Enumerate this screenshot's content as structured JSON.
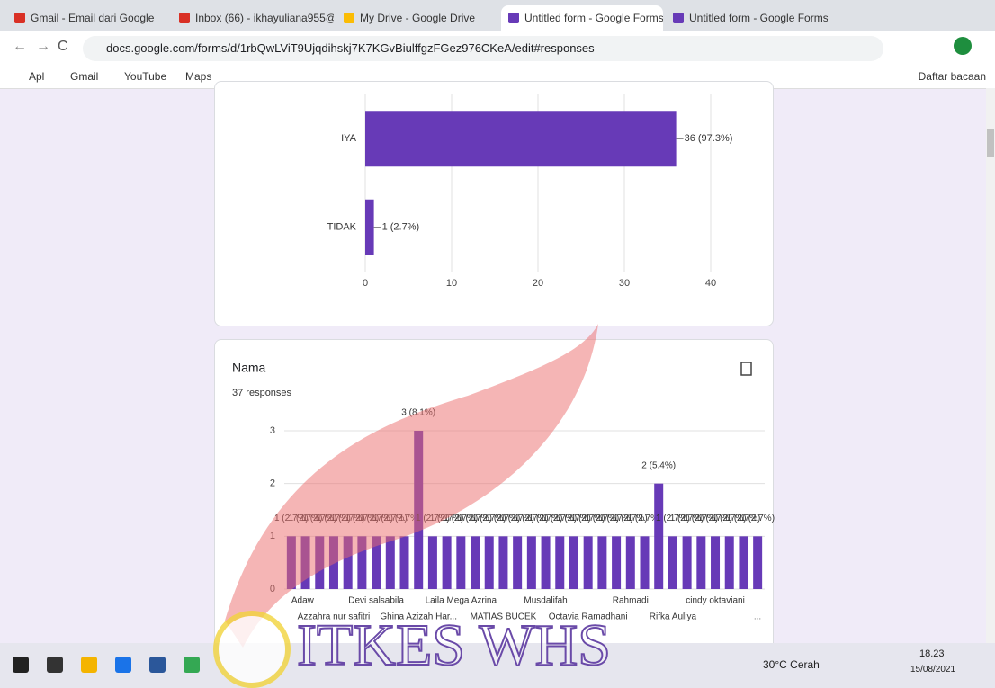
{
  "browser": {
    "tabs": [
      "Gmail - Email dari Google",
      "Inbox (66) - ikhayuliana955@",
      "My Drive - Google Drive",
      "Untitled form - Google Forms",
      "Untitled form - Google Forms"
    ],
    "url": "docs.google.com/forms/d/1rbQwLViT9Ujqdihskj7K7KGvBiulffgzFGez976CKeA/edit#responses",
    "bookmarks": [
      "Apl",
      "Gmail",
      "YouTube",
      "Maps"
    ],
    "reading_list": "Daftar bacaan"
  },
  "chart_data": [
    {
      "type": "hbar",
      "categories": [
        "IYA",
        "TIDAK"
      ],
      "values": [
        36,
        1
      ],
      "value_labels": [
        "36 (97.3%)",
        "1 (2.7%)"
      ],
      "xlim": [
        0,
        40
      ],
      "xticks": [
        0,
        10,
        20,
        30,
        40
      ],
      "color": "#673ab7",
      "grid": true
    },
    {
      "type": "bar",
      "title": "Nama",
      "subtitle": "37 responses",
      "categories": [
        "Adaw",
        null,
        null,
        "Azzahra nur safitri",
        null,
        null,
        "Devi salsabila",
        null,
        null,
        "Ghina Azizah Har...",
        null,
        null,
        "Laila Mega Azrina",
        null,
        null,
        "MATIAS BUCEK",
        null,
        null,
        "Musdalifah",
        null,
        null,
        "Octavia Ramadhani",
        null,
        null,
        "Rahmadi",
        null,
        null,
        "Rifka Auliya",
        null,
        null,
        "cindy oktaviani",
        null,
        null,
        null
      ],
      "values": [
        1,
        1,
        1,
        1,
        1,
        1,
        1,
        1,
        1,
        3,
        1,
        1,
        1,
        1,
        1,
        1,
        1,
        1,
        1,
        1,
        1,
        1,
        1,
        1,
        1,
        1,
        2,
        1,
        1,
        1,
        1,
        1,
        1,
        1
      ],
      "value_labels": [
        "1 (2.7%)",
        "1 (2.7%)",
        "1 (2.7%)",
        "1 (2.7%)",
        "1 (2.7%)",
        "1 (2.7%)",
        "1 (2.7%)",
        "1 (2.7%)",
        "1 (2.7%)",
        "3 (8.1%)",
        "1 (2.7%)",
        "1 (2.7%)",
        "1 (2.7%)",
        "1 (2.7%)",
        "1 (2.7%)",
        "1 (2.7%)",
        "1 (2.7%)",
        "1 (2.7%)",
        "1 (2.7%)",
        "1 (2.7%)",
        "1 (2.7%)",
        "1 (2.7%)",
        "1 (2.7%)",
        "1 (2.7%)",
        "1 (2.7%)",
        "1 (2.7%)",
        "2 (5.4%)",
        "1 (2.7%)",
        "1 (2.7%)",
        "1 (2.7%)",
        "1 (2.7%)",
        "1 (2.7%)",
        "1 (2.7%)",
        "1 (2.7%)"
      ],
      "more_label": "...",
      "ylim": [
        0,
        3
      ],
      "yticks": [
        0,
        1,
        2,
        3
      ],
      "color": "#673ab7",
      "grid": true
    }
  ],
  "watermark": "ITKES WHS",
  "taskbar": {
    "weather": "30°C Cerah",
    "time": "18.23",
    "date": "15/08/2021"
  }
}
